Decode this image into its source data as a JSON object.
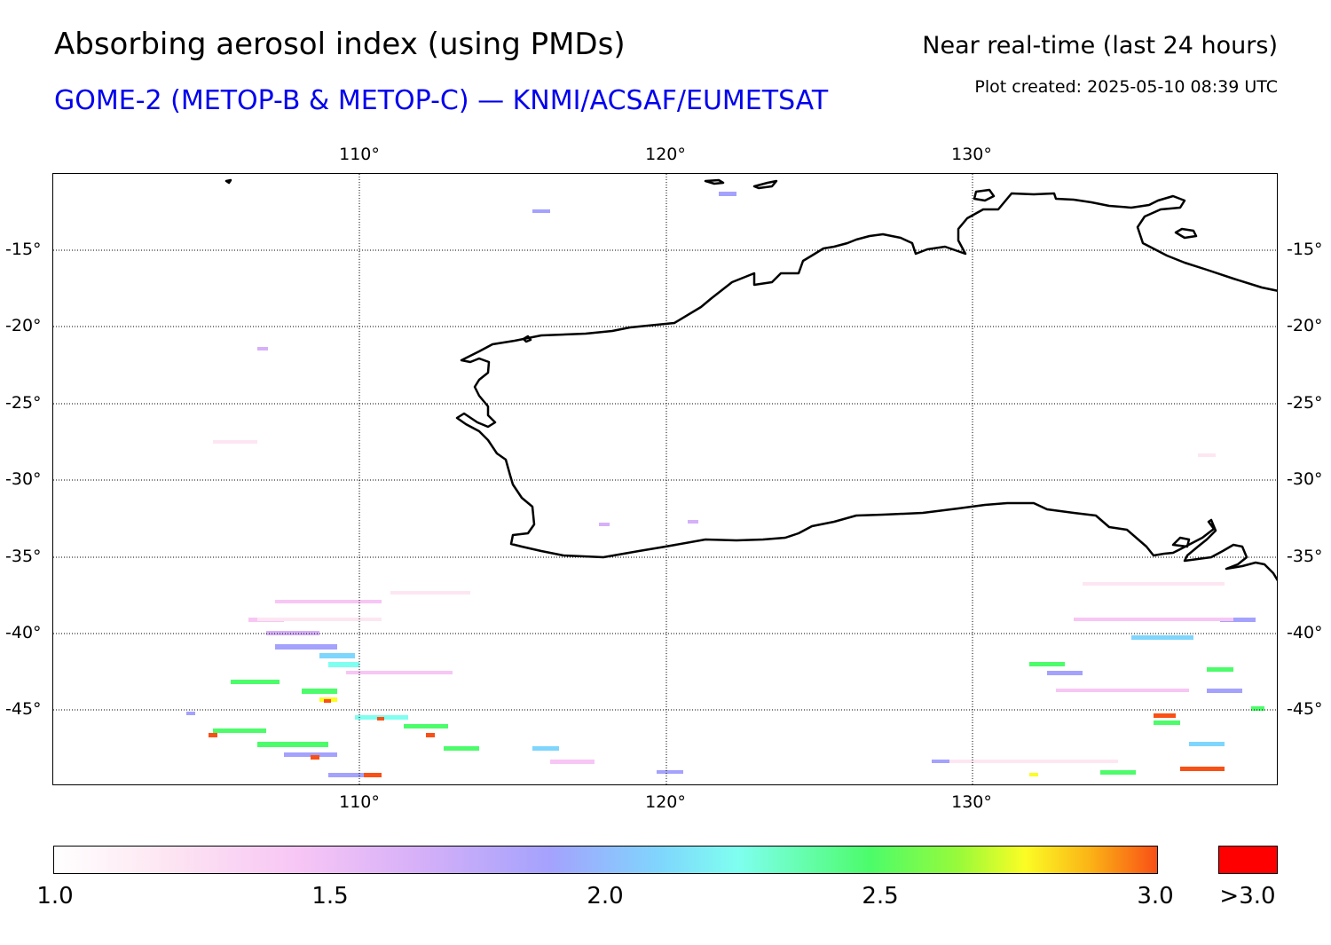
{
  "header": {
    "title": "Absorbing aerosol index (using PMDs)",
    "subtitle": "GOME-2 (METOP-B & METOP-C) — KNMI/ACSAF/EUMETSAT",
    "period": "Near real-time (last 24 hours)",
    "created": "Plot created: 2025-05-10 08:39 UTC"
  },
  "map": {
    "lon_labels": [
      "110°",
      "120°",
      "130°"
    ],
    "lat_labels": [
      "-15°",
      "-20°",
      "-25°",
      "-30°",
      "-35°",
      "-40°",
      "-45°"
    ],
    "coastline_color": "#000000",
    "grid_style": "dotted"
  },
  "colorbar": {
    "ticks": [
      "1.0",
      "1.5",
      "2.0",
      "2.5",
      "3.0"
    ],
    "over_label": ">3.0",
    "over_color": "#ff0000",
    "range": [
      1.0,
      3.0
    ],
    "colors": [
      "#ffffff",
      "#f7c6f5",
      "#a4a2fd",
      "#7ffff0",
      "#4cfc6a",
      "#fbfd25",
      "#f95016"
    ]
  }
}
